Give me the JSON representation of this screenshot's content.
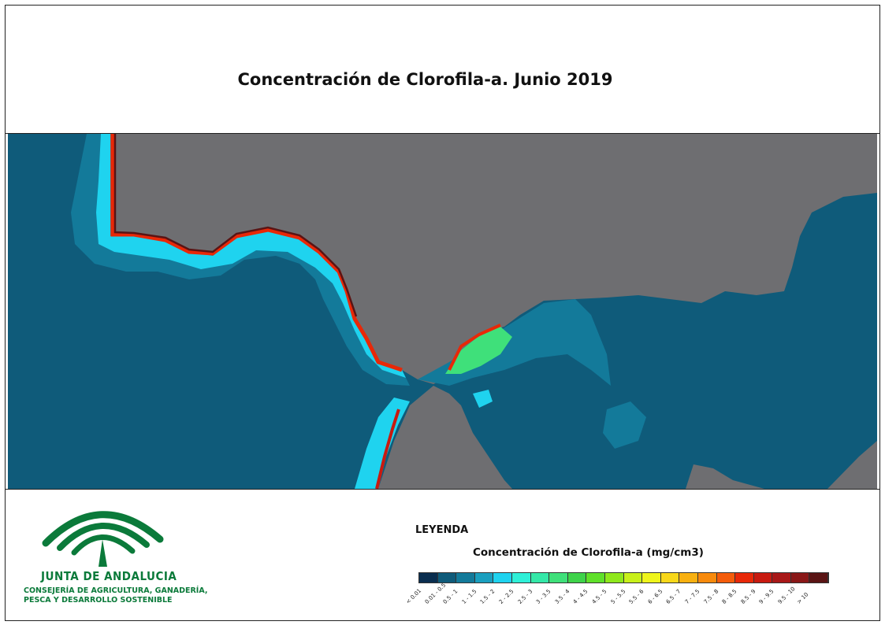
{
  "title": "Concentración de Clorofila-a. Junio 2019",
  "map": {
    "land_color": "#6e6e71",
    "sea_color": "#0f5b7a"
  },
  "logo": {
    "org_name": "JUNTA DE ANDALUCIA",
    "dept_line1": "CONSEJERÍA DE AGRICULTURA, GANADERÍA,",
    "dept_line2": "PESCA Y DESARROLLO SOSTENIBLE",
    "brand_color": "#0b7a3a"
  },
  "legend": {
    "heading": "LEYENDA",
    "subtitle": "Concentración de Clorofila-a (mg/cm3)",
    "classes": [
      {
        "label": "< 0.01",
        "color": "#0a2e4f"
      },
      {
        "label": "0.01 - 0.5",
        "color": "#0f5b7a"
      },
      {
        "label": "0.5 - 1",
        "color": "#137a9a"
      },
      {
        "label": "1 - 1.5",
        "color": "#1a9fbf"
      },
      {
        "label": "1.5 - 2",
        "color": "#1fd3ef"
      },
      {
        "label": "2 - 2.5",
        "color": "#2ff0d8"
      },
      {
        "label": "2.5 - 3",
        "color": "#34e8a8"
      },
      {
        "label": "3 - 3.5",
        "color": "#3fe07a"
      },
      {
        "label": "3.5 - 4",
        "color": "#3ed34a"
      },
      {
        "label": "4 - 4.5",
        "color": "#5fe02a"
      },
      {
        "label": "4.5 - 5",
        "color": "#8fe81c"
      },
      {
        "label": "5 - 5.5",
        "color": "#c8f01a"
      },
      {
        "label": "5.5 - 6",
        "color": "#eff51c"
      },
      {
        "label": "6 - 6.5",
        "color": "#f8d81a"
      },
      {
        "label": "6.5 - 7",
        "color": "#f8b010"
      },
      {
        "label": "7 - 7.5",
        "color": "#f88a0c"
      },
      {
        "label": "7.5 - 8",
        "color": "#f45c0a"
      },
      {
        "label": "8 - 8.5",
        "color": "#e82808"
      },
      {
        "label": "8.5 - 9",
        "color": "#c81a10"
      },
      {
        "label": "9 - 9.5",
        "color": "#a81818"
      },
      {
        "label": "9.5 - 10",
        "color": "#8a1818"
      },
      {
        "label": "> 10",
        "color": "#5a1414"
      }
    ]
  }
}
